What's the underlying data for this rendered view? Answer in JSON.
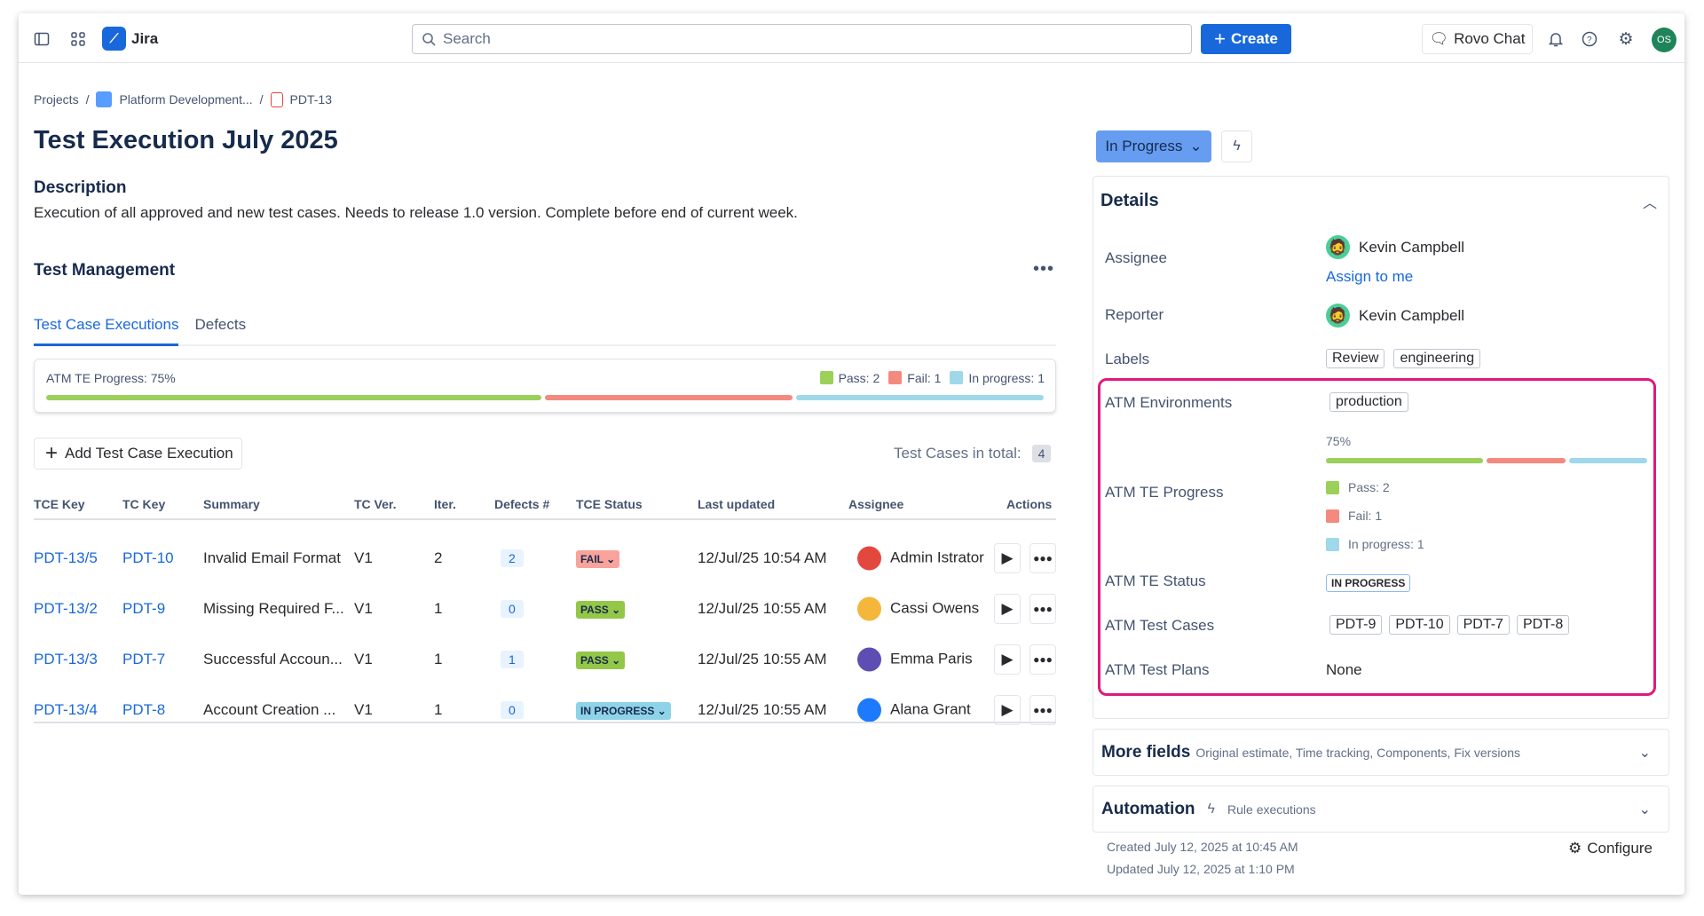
{
  "topbar": {
    "app_name": "Jira",
    "search_placeholder": "Search",
    "create_label": "Create",
    "rovo_label": "Rovo Chat",
    "user_initials": "OS"
  },
  "breadcrumb": {
    "projects": "Projects",
    "project": "Platform Development...",
    "issue": "PDT-13"
  },
  "issue": {
    "title": "Test Execution July 2025",
    "description_heading": "Description",
    "description": "Execution of all approved and new test cases. Needs to release 1.0 version. Complete before end of current week.",
    "status": "In Progress"
  },
  "test_management": {
    "heading": "Test Management",
    "tabs": [
      {
        "label": "Test Case Executions",
        "active": true
      },
      {
        "label": "Defects",
        "active": false
      }
    ],
    "progress": {
      "label": "ATM TE Progress: 75%",
      "percent": 75,
      "pass": "Pass: 2",
      "fail": "Fail: 1",
      "in_progress": "In progress: 1",
      "counts": {
        "pass": 2,
        "fail": 1,
        "in_progress": 1
      }
    },
    "add_label": "Add Test Case Execution",
    "total_label": "Test Cases in total:",
    "total": "4",
    "columns": [
      "TCE Key",
      "TC Key",
      "Summary",
      "TC Ver.",
      "Iter.",
      "Defects #",
      "TCE Status",
      "Last updated",
      "Assignee",
      "Actions"
    ],
    "rows": [
      {
        "tce": "PDT-13/5",
        "tc": "PDT-10",
        "summary": "Invalid Email Format",
        "ver": "V1",
        "iter": "2",
        "defects": "2",
        "status": "FAIL",
        "updated": "12/Jul/25 10:54 AM",
        "assignee": "Admin Istrator"
      },
      {
        "tce": "PDT-13/2",
        "tc": "PDT-9",
        "summary": "Missing Required F...",
        "ver": "V1",
        "iter": "1",
        "defects": "0",
        "status": "PASS",
        "updated": "12/Jul/25 10:55 AM",
        "assignee": "Cassi Owens"
      },
      {
        "tce": "PDT-13/3",
        "tc": "PDT-7",
        "summary": "Successful Accoun...",
        "ver": "V1",
        "iter": "1",
        "defects": "1",
        "status": "PASS",
        "updated": "12/Jul/25 10:55 AM",
        "assignee": "Emma Paris"
      },
      {
        "tce": "PDT-13/4",
        "tc": "PDT-8",
        "summary": "Account Creation ...",
        "ver": "V1",
        "iter": "1",
        "defects": "0",
        "status": "IN PROGRESS",
        "updated": "12/Jul/25 10:55 AM",
        "assignee": "Alana Grant"
      }
    ]
  },
  "details": {
    "heading": "Details",
    "assignee_label": "Assignee",
    "assignee": "Kevin Campbell",
    "assign_to_me": "Assign to me",
    "reporter_label": "Reporter",
    "reporter": "Kevin Campbell",
    "labels_label": "Labels",
    "labels": [
      "Review",
      "engineering"
    ],
    "env_label": "ATM Environments",
    "env": "production",
    "progress_label": "ATM TE Progress",
    "progress_pct": "75%",
    "pass": "Pass: 2",
    "fail": "Fail: 1",
    "in_progress": "In progress: 1",
    "te_status_label": "ATM TE Status",
    "te_status": "IN PROGRESS",
    "test_cases_label": "ATM Test Cases",
    "test_cases": [
      "PDT-9",
      "PDT-10",
      "PDT-7",
      "PDT-8"
    ],
    "test_plans_label": "ATM Test Plans",
    "test_plans": "None"
  },
  "more_fields": {
    "heading": "More fields",
    "sub": "Original estimate, Time tracking, Components, Fix versions"
  },
  "automation": {
    "heading": "Automation",
    "sub": "Rule executions"
  },
  "footer": {
    "created": "Created July 12, 2025 at 10:45 AM",
    "updated": "Updated July 12, 2025 at 1:10 PM",
    "configure": "Configure"
  },
  "colors": {
    "pass": "#9bd05a",
    "fail": "#f38a7f",
    "in_progress": "#9fd8ea",
    "accent": "#1868db",
    "highlight": "#e0197a"
  }
}
